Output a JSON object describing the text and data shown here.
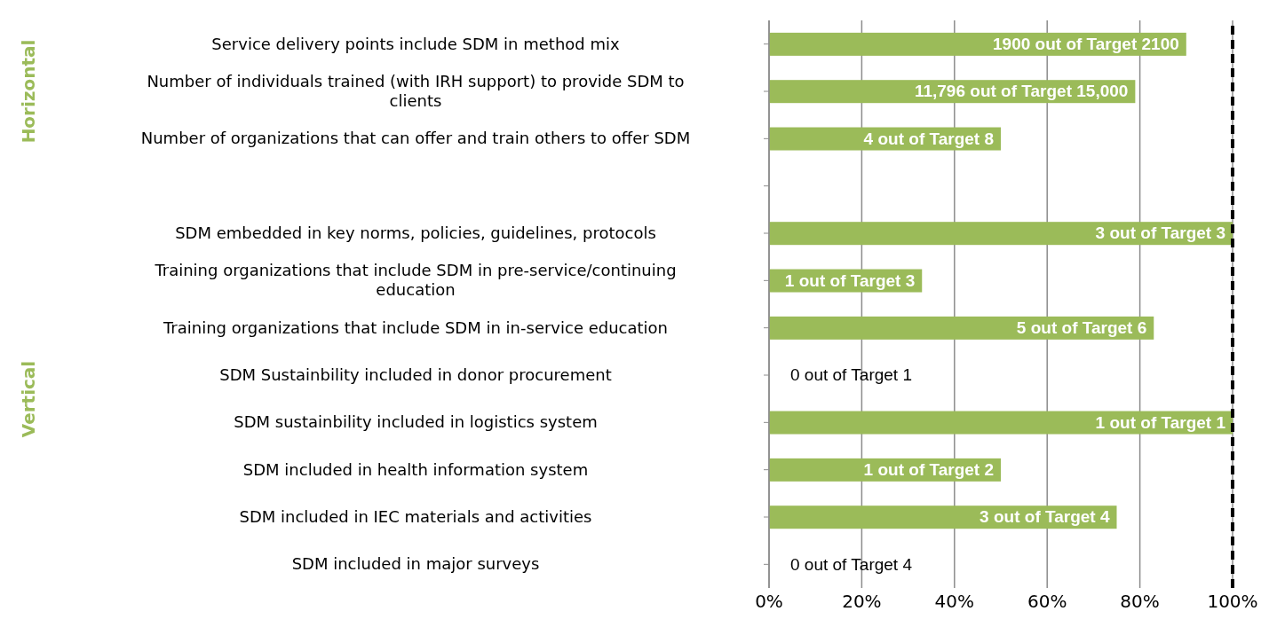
{
  "chart_data": {
    "type": "bar",
    "orientation": "horizontal",
    "categories": [
      "Service delivery points include SDM in method mix",
      "Number of individuals trained (with IRH support) to provide SDM to clients",
      "Number of organizations that can offer and train others to offer SDM",
      null,
      "SDM embedded in key norms, policies, guidelines, protocols",
      "Training organizations that include SDM in pre-service/continuing education",
      "Training organizations that include SDM in in-service education",
      "SDM Sustainbility included in donor procurement",
      "SDM sustainbility included in logistics system",
      "SDM included in health information system",
      "SDM included in IEC materials and activities",
      "SDM included in major surveys"
    ],
    "values": [
      90,
      79,
      50,
      null,
      100,
      33,
      83,
      0,
      100,
      50,
      75,
      0
    ],
    "color": "#9bbb59",
    "xlim": [
      0,
      100
    ],
    "xticks": [
      {
        "value": 0,
        "label": "0%"
      },
      {
        "value": 20,
        "label": "20%"
      },
      {
        "value": 40,
        "label": "40%"
      },
      {
        "value": 60,
        "label": "60%"
      },
      {
        "value": 80,
        "label": "80%"
      },
      {
        "value": 100,
        "label": "100%"
      }
    ],
    "grid": "x",
    "ref_lines": [
      {
        "axis": "x",
        "value": 100,
        "color": "#000000",
        "line_style": "dashed"
      }
    ],
    "annotations": [
      "Horizontal",
      "Vertical",
      {
        "text": "1900 out of Target 2100",
        "x": 90,
        "y": "Service delivery points include SDM in method mix"
      },
      {
        "text": "11,796 out of Target 15,000",
        "x": 79,
        "y": "Number of individuals trained (with IRH support) to provide SDM to clients"
      },
      {
        "text": "4 out of Target 8",
        "x": 50,
        "y": "Number of organizations that can offer and train others to offer SDM"
      },
      {
        "text": "3 out of Target 3",
        "x": 100,
        "y": "SDM embedded in key norms, policies, guidelines, protocols"
      },
      {
        "text": "1 out of Target 3",
        "x": 33,
        "y": "Training organizations that include SDM in pre-service/continuing education"
      },
      {
        "text": "5 out of Target 6",
        "x": 83,
        "y": "Training organizations that include SDM in in-service education"
      },
      {
        "text": "0 out of Target 1",
        "x": 0,
        "y": "SDM Sustainbility included in donor procurement"
      },
      {
        "text": "1 out of Target 1",
        "x": 100,
        "y": "SDM sustainbility included in logistics system"
      },
      {
        "text": "1 out of Target 2",
        "x": 50,
        "y": "SDM included in health information system"
      },
      {
        "text": "3 out of Target 4",
        "x": 75,
        "y": "SDM included in IEC materials and activities"
      },
      {
        "text": "0 out of Target 4",
        "x": 0,
        "y": "SDM included in major surveys"
      }
    ]
  }
}
